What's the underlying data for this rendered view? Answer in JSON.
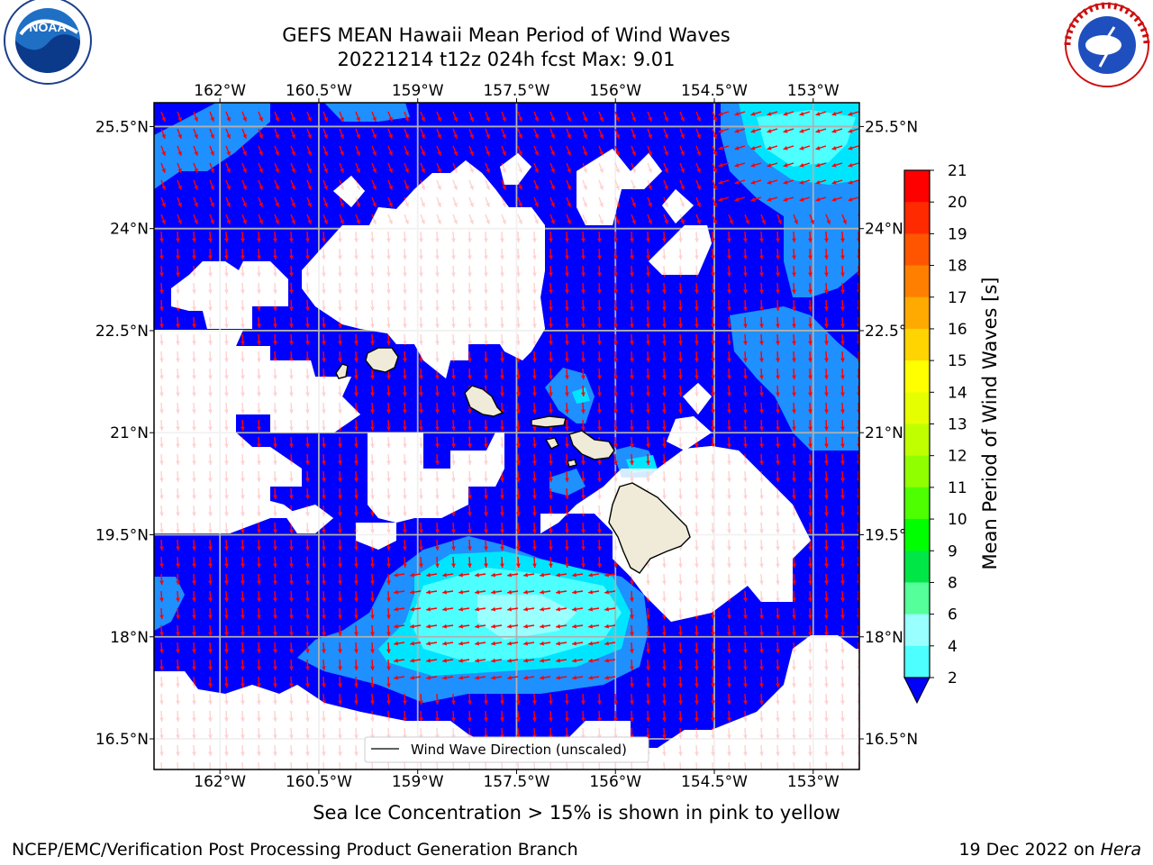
{
  "title": {
    "line1": "GEFS MEAN Hawaii Mean Period of Wind Waves",
    "line2": "20221214 t12z 024h fcst   Max: 9.01"
  },
  "logos": {
    "left": {
      "icon": "noaa-logo",
      "text": "NOAA",
      "ring_text": "NATIONAL OCEANIC AND ATMOSPHERIC ADMINISTRATION · U.S. DEPARTMENT OF COMMERCE"
    },
    "right": {
      "icon": "nws-logo",
      "ring_text": "NATIONAL WEATHER SERVICE"
    }
  },
  "map": {
    "lon_labels": [
      "162°W",
      "160.5°W",
      "159°W",
      "157.5°W",
      "156°W",
      "154.5°W",
      "153°W"
    ],
    "lat_labels": [
      "25.5°N",
      "24°N",
      "22.5°N",
      "21°N",
      "19.5°N",
      "18°N",
      "16.5°N"
    ],
    "lon_range": [
      -163.0,
      -152.3
    ],
    "lat_range": [
      16.05,
      25.85
    ],
    "legend_label": "Wind Wave Direction (unscaled)",
    "colors": {
      "ocean_low": "#0000ff",
      "band_2_4": "#1e90ff",
      "band_4_6": "#00e5ff",
      "band_6_8": "#4dffff",
      "band_8_9": "#99ffff",
      "land": "#efebd8",
      "vector": "#ff0000",
      "grid": "#b0b0b0"
    }
  },
  "colorbar": {
    "label": "Mean Period of Wind Waves [s]",
    "ticks": [
      "21",
      "20",
      "19",
      "18",
      "17",
      "16",
      "15",
      "14",
      "13",
      "12",
      "11",
      "10",
      "9",
      "8",
      "6",
      "4",
      "2"
    ],
    "colors": [
      "#ff0000",
      "#ff2a00",
      "#ff5500",
      "#ff8000",
      "#ffaa00",
      "#ffd400",
      "#ffff00",
      "#e6ff00",
      "#c0ff00",
      "#90ff00",
      "#4dff00",
      "#00ff00",
      "#00e646",
      "#55ff99",
      "#99ffff",
      "#4dffff",
      "#00e5ff",
      "#1e90ff"
    ]
  },
  "subtitle": "Sea Ice Concentration > 15% is shown in pink to yellow",
  "footer": {
    "left": "NCEP/EMC/Verification Post Processing Product Generation Branch",
    "right_prefix": "19 Dec 2022 on ",
    "right_host": "Hera"
  }
}
